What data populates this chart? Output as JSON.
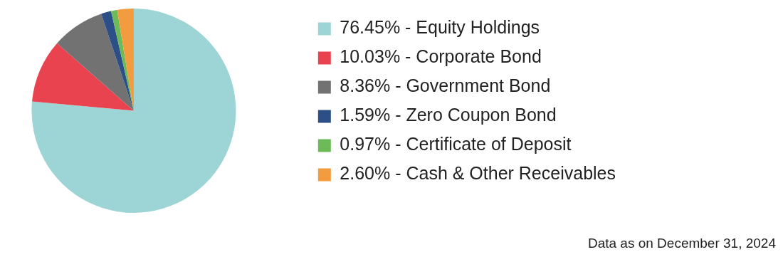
{
  "chart_data": {
    "type": "pie",
    "categories": [
      "76.45% - Equity Holdings",
      "10.03% - Corporate Bond",
      "8.36% - Government Bond",
      "1.59% - Zero Coupon Bond",
      "0.97% - Certificate of Deposit",
      "2.60% - Cash & Other Receivables"
    ],
    "values": [
      76.45,
      10.03,
      8.36,
      1.59,
      0.97,
      2.6
    ],
    "colors": [
      "#9dd4d6",
      "#e8434f",
      "#727272",
      "#2b4f86",
      "#6dbb58",
      "#f39b3f"
    ],
    "legend": "right",
    "annotations": [
      "Data as on December 31, 2024"
    ]
  }
}
